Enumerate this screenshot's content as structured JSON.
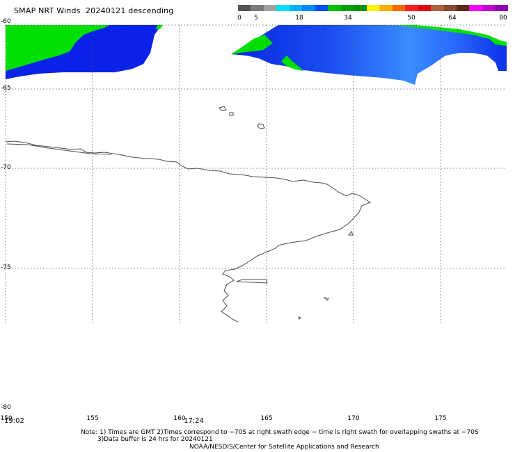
{
  "title": "SMAP NRT Winds  20240121 descending",
  "colorbar": {
    "colors": [
      "#555555",
      "#7a7a7a",
      "#a0a0a0",
      "#00e0ff",
      "#00b4ff",
      "#0088ff",
      "#0050ff",
      "#00c000",
      "#00a000",
      "#009000",
      "#f8f000",
      "#ffb000",
      "#ff6800",
      "#ff2020",
      "#e00010",
      "#b06040",
      "#8a4a30",
      "#5a2e18",
      "#ff00ff",
      "#c000d0",
      "#9000b0"
    ],
    "ticks": [
      "0",
      "5",
      "18",
      "34",
      "50",
      "64",
      "80"
    ]
  },
  "axes": {
    "lat_labels": [
      "-60",
      "-65",
      "-70",
      "-75",
      "-80"
    ],
    "lon_labels": [
      "150",
      "155",
      "160",
      "165",
      "170",
      "175"
    ]
  },
  "times": [
    "19:02",
    "17:24"
  ],
  "notes": {
    "line1": "Note: 1) Times are GMT 2)Times correspond to −70S at right swath edge − time is right swath for overlapping swaths at −70S",
    "line2": "3)Data buffer is 24 hrs for 20240121",
    "line3": "NOAA/NESDIS/Center for Satellite Applications and Research"
  }
}
